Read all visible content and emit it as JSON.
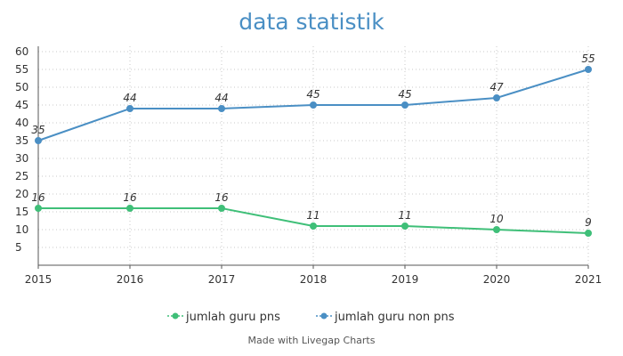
{
  "chart_data": {
    "type": "line",
    "title": "data statistik",
    "x": [
      "2015",
      "2016",
      "2017",
      "2018",
      "2019",
      "2020",
      "2021"
    ],
    "series": [
      {
        "name": "jumlah guru pns",
        "color": "#3fbf78",
        "values": [
          16,
          16,
          16,
          11,
          11,
          10,
          9
        ]
      },
      {
        "name": "jumlah guru non pns",
        "color": "#4a8fc4",
        "values": [
          35,
          44,
          44,
          45,
          45,
          47,
          55
        ]
      }
    ],
    "y_ticks": [
      5,
      10,
      15,
      20,
      25,
      30,
      35,
      40,
      45,
      50,
      55,
      60
    ],
    "ylim": [
      0,
      60
    ],
    "grid": true,
    "legend_position": "bottom",
    "data_labels": true
  },
  "credit": "Made with Livegap Charts"
}
